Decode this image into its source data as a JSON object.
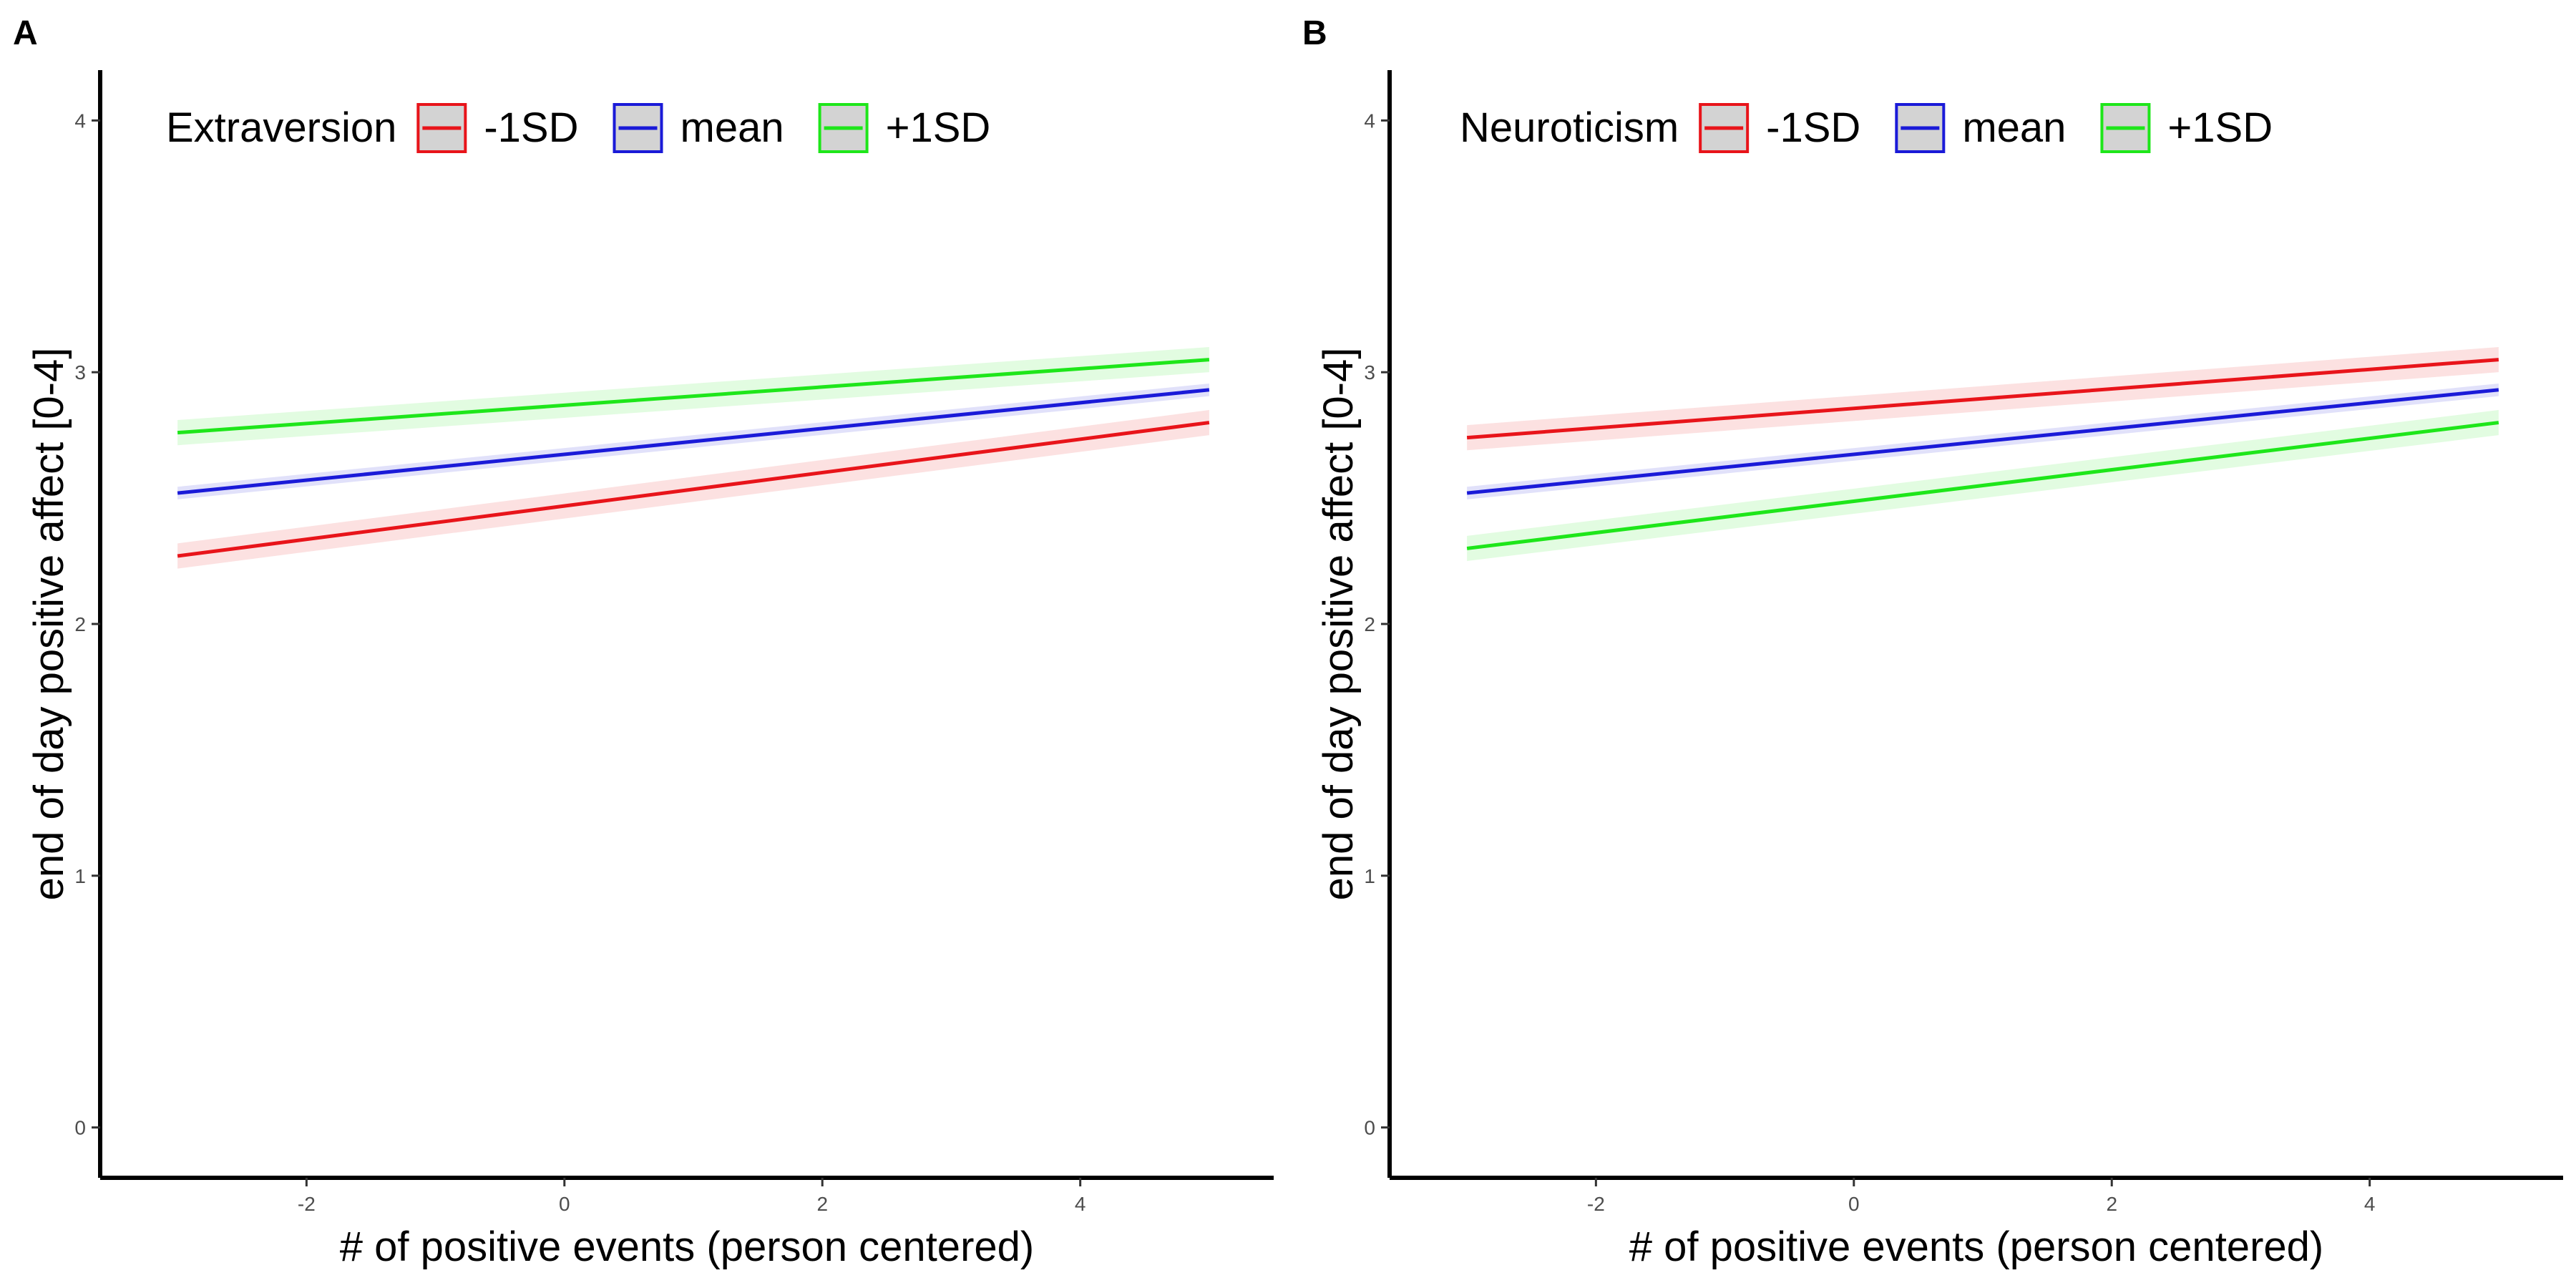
{
  "chart_data": [
    {
      "panel_label": "A",
      "type": "line",
      "xlabel": "# of positive events (person centered)",
      "ylabel": "end of day positive affect [0-4]",
      "xlim": [
        -3.6,
        5.5
      ],
      "ylim": [
        -0.2,
        4.2
      ],
      "x_ticks": [
        -2,
        0,
        2,
        4
      ],
      "x_tick_labels": [
        "-2",
        "0",
        "2",
        "4"
      ],
      "y_ticks": [
        0,
        1,
        2,
        3,
        4
      ],
      "y_tick_labels": [
        "0",
        "1",
        "2",
        "3",
        "4"
      ],
      "grid": false,
      "legend": {
        "title": "Extraversion",
        "position": "top-left",
        "direction": "horizontal"
      },
      "series": [
        {
          "name": "-1SD",
          "color": "#e8141a",
          "x": [
            -3,
            5
          ],
          "y": [
            2.27,
            2.8
          ],
          "ci_halfwidth": 0.05
        },
        {
          "name": "mean",
          "color": "#1a1ad8",
          "x": [
            -3,
            5
          ],
          "y": [
            2.52,
            2.93
          ],
          "ci_halfwidth": 0.025
        },
        {
          "name": "+1SD",
          "color": "#1ee61a",
          "x": [
            -3,
            5
          ],
          "y": [
            2.76,
            3.05
          ],
          "ci_halfwidth": 0.05
        }
      ]
    },
    {
      "panel_label": "B",
      "type": "line",
      "xlabel": "# of positive events (person centered)",
      "ylabel": "end of day positive affect [0-4]",
      "xlim": [
        -3.6,
        5.5
      ],
      "ylim": [
        -0.2,
        4.2
      ],
      "x_ticks": [
        -2,
        0,
        2,
        4
      ],
      "x_tick_labels": [
        "-2",
        "0",
        "2",
        "4"
      ],
      "y_ticks": [
        0,
        1,
        2,
        3,
        4
      ],
      "y_tick_labels": [
        "0",
        "1",
        "2",
        "3",
        "4"
      ],
      "grid": false,
      "legend": {
        "title": "Neuroticism",
        "position": "top-left",
        "direction": "horizontal"
      },
      "series": [
        {
          "name": "-1SD",
          "color": "#e8141a",
          "x": [
            -3,
            5
          ],
          "y": [
            2.74,
            3.05
          ],
          "ci_halfwidth": 0.05
        },
        {
          "name": "mean",
          "color": "#1a1ad8",
          "x": [
            -3,
            5
          ],
          "y": [
            2.52,
            2.93
          ],
          "ci_halfwidth": 0.025
        },
        {
          "name": "+1SD",
          "color": "#1ee61a",
          "x": [
            -3,
            5
          ],
          "y": [
            2.3,
            2.8
          ],
          "ci_halfwidth": 0.05
        }
      ]
    }
  ]
}
